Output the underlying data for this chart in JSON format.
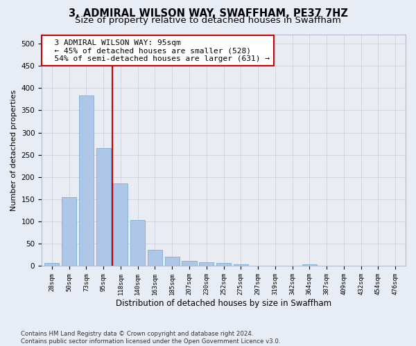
{
  "title": "3, ADMIRAL WILSON WAY, SWAFFHAM, PE37 7HZ",
  "subtitle": "Size of property relative to detached houses in Swaffham",
  "xlabel": "Distribution of detached houses by size in Swaffham",
  "ylabel": "Number of detached properties",
  "bar_labels": [
    "28sqm",
    "50sqm",
    "73sqm",
    "95sqm",
    "118sqm",
    "140sqm",
    "163sqm",
    "185sqm",
    "207sqm",
    "230sqm",
    "252sqm",
    "275sqm",
    "297sqm",
    "319sqm",
    "342sqm",
    "364sqm",
    "387sqm",
    "409sqm",
    "432sqm",
    "454sqm",
    "476sqm"
  ],
  "bar_values": [
    7,
    155,
    383,
    265,
    185,
    103,
    36,
    21,
    11,
    9,
    7,
    4,
    0,
    0,
    0,
    4,
    0,
    0,
    0,
    0,
    0
  ],
  "bar_color": "#aec6e8",
  "bar_edge_color": "#7aafd4",
  "reference_line_x": 3,
  "reference_line_color": "#cc0000",
  "annotation_text": "  3 ADMIRAL WILSON WAY: 95sqm\n  ← 45% of detached houses are smaller (528)\n  54% of semi-detached houses are larger (631) →",
  "annotation_box_color": "#ffffff",
  "annotation_box_edge_color": "#cc0000",
  "ylim": [
    0,
    520
  ],
  "yticks": [
    0,
    50,
    100,
    150,
    200,
    250,
    300,
    350,
    400,
    450,
    500
  ],
  "background_color": "#e8ecf5",
  "axes_background_color": "#eaecf4",
  "footnote": "Contains HM Land Registry data © Crown copyright and database right 2024.\nContains public sector information licensed under the Open Government Licence v3.0.",
  "title_fontsize": 10.5,
  "subtitle_fontsize": 9.5,
  "xlabel_fontsize": 8.5,
  "ylabel_fontsize": 8,
  "annotation_fontsize": 8
}
